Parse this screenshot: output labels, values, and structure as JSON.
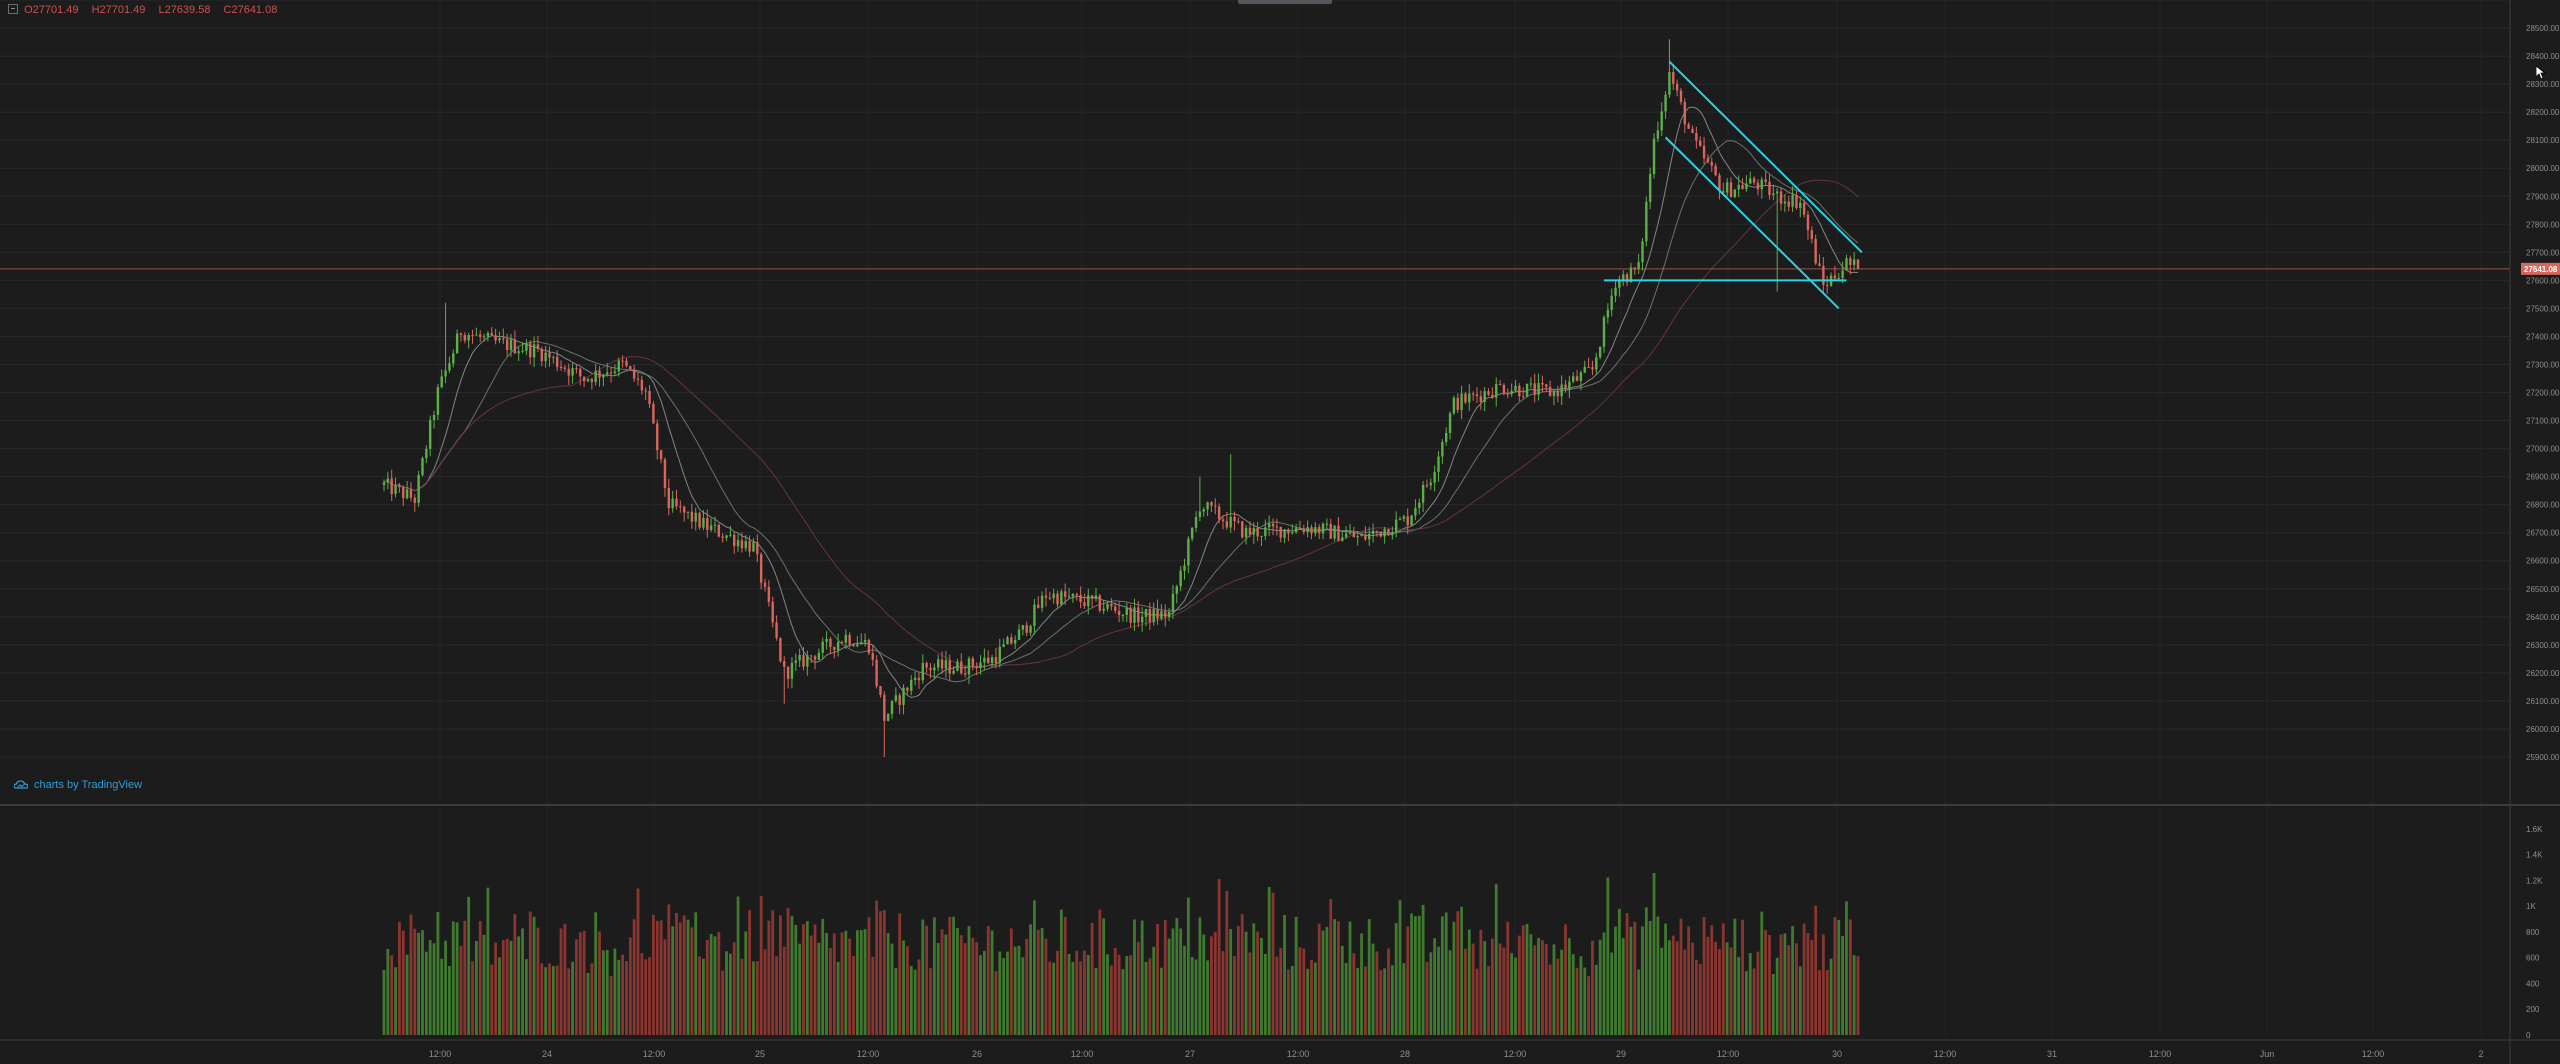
{
  "legend": {
    "open": "O27701.49",
    "high": "H27701.49",
    "low": "L27639.58",
    "close": "C27641.08"
  },
  "branding": {
    "text": "charts by TradingView"
  },
  "price_axis": {
    "labels": [
      "28600.00",
      "28500.00",
      "28400.00",
      "28300.00",
      "28200.00",
      "28100.00",
      "28000.00",
      "27900.00",
      "27800.00",
      "27700.00",
      "27600.00",
      "27500.00",
      "27400.00",
      "27300.00",
      "27200.00",
      "27100.00",
      "27000.00",
      "26900.00",
      "26800.00",
      "26700.00",
      "26600.00",
      "26500.00",
      "26400.00",
      "26300.00",
      "26200.00",
      "26100.00",
      "26000.00",
      "25900.00"
    ],
    "last_price_label": "27641.08"
  },
  "volume_axis": {
    "labels": [
      "1.6K",
      "1.4K",
      "1.2K",
      "1K",
      "800",
      "600",
      "400",
      "200",
      "0"
    ]
  },
  "time_axis": {
    "labels": [
      "12:00",
      "24",
      "12:00",
      "25",
      "12:00",
      "26",
      "12:00",
      "27",
      "12:00",
      "28",
      "12:00",
      "29",
      "12:00",
      "30",
      "12:00",
      "31",
      "12:00",
      "Jun",
      "12:00",
      "2"
    ]
  },
  "colors": {
    "background": "#1c1c1d",
    "up": "#5bb04a",
    "down": "#d9665c",
    "trendline": "#28d4e6",
    "last_price": "#d9665c",
    "ma_fast": "#9aa39a",
    "ma_mid": "#7c8a80",
    "ma_slow": "#7a3a4c",
    "vol_up": "#3f7a2e",
    "vol_down": "#8b3530"
  },
  "chart_data": {
    "type": "candlestick",
    "symbol_price_range": [
      25900,
      28600
    ],
    "last_price": 27641.08,
    "price_anchors": [
      {
        "t": 0,
        "p": 26870
      },
      {
        "t": 8,
        "p": 26820
      },
      {
        "t": 14,
        "p": 27200
      },
      {
        "t": 20,
        "p": 27420
      },
      {
        "t": 28,
        "p": 27380
      },
      {
        "t": 40,
        "p": 27350
      },
      {
        "t": 52,
        "p": 27250
      },
      {
        "t": 62,
        "p": 27300
      },
      {
        "t": 68,
        "p": 27200
      },
      {
        "t": 74,
        "p": 26800
      },
      {
        "t": 84,
        "p": 26720
      },
      {
        "t": 96,
        "p": 26650
      },
      {
        "t": 104,
        "p": 26200
      },
      {
        "t": 112,
        "p": 26270
      },
      {
        "t": 120,
        "p": 26330
      },
      {
        "t": 126,
        "p": 26300
      },
      {
        "t": 130,
        "p": 26040
      },
      {
        "t": 140,
        "p": 26220
      },
      {
        "t": 150,
        "p": 26220
      },
      {
        "t": 158,
        "p": 26250
      },
      {
        "t": 166,
        "p": 26350
      },
      {
        "t": 172,
        "p": 26480
      },
      {
        "t": 184,
        "p": 26450
      },
      {
        "t": 196,
        "p": 26400
      },
      {
        "t": 204,
        "p": 26410
      },
      {
        "t": 212,
        "p": 26800
      },
      {
        "t": 224,
        "p": 26700
      },
      {
        "t": 240,
        "p": 26720
      },
      {
        "t": 254,
        "p": 26680
      },
      {
        "t": 266,
        "p": 26750
      },
      {
        "t": 272,
        "p": 26900
      },
      {
        "t": 278,
        "p": 27160
      },
      {
        "t": 290,
        "p": 27220
      },
      {
        "t": 304,
        "p": 27200
      },
      {
        "t": 314,
        "p": 27280
      },
      {
        "t": 320,
        "p": 27600
      },
      {
        "t": 326,
        "p": 27640
      },
      {
        "t": 330,
        "p": 28100
      },
      {
        "t": 334,
        "p": 28340
      },
      {
        "t": 340,
        "p": 28100
      },
      {
        "t": 348,
        "p": 27920
      },
      {
        "t": 356,
        "p": 27950
      },
      {
        "t": 362,
        "p": 27900
      },
      {
        "t": 368,
        "p": 27880
      },
      {
        "t": 372,
        "p": 27680
      },
      {
        "t": 374,
        "p": 27580
      },
      {
        "t": 380,
        "p": 27660
      },
      {
        "t": 383,
        "p": 27641
      }
    ],
    "candle_count": 384,
    "spikes": [
      {
        "t": 16,
        "high": 27520
      },
      {
        "t": 104,
        "low": 26090
      },
      {
        "t": 130,
        "low": 25900
      },
      {
        "t": 212,
        "high": 26900
      },
      {
        "t": 220,
        "high": 26980
      },
      {
        "t": 334,
        "high": 28460
      },
      {
        "t": 362,
        "low": 27560
      }
    ],
    "channel_lines": [
      {
        "t1": 334,
        "p1": 28380,
        "t2": 384,
        "p2": 27700
      },
      {
        "t1": 333,
        "p1": 28110,
        "t2": 378,
        "p2": 27500
      },
      {
        "t1": 317,
        "p1": 27600,
        "t2": 380,
        "p2": 27600
      }
    ],
    "volume_range": [
      0,
      1700
    ]
  }
}
